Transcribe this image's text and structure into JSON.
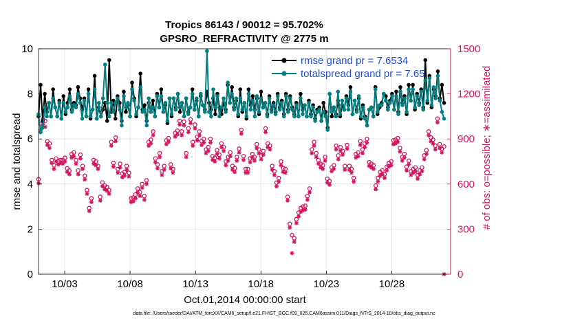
{
  "chart_data": {
    "type": "line",
    "title": "Tropics 86143 / 90012 = 95.702%",
    "subtitle": "GPSRO_REFRACTIVITY @ 2775 m",
    "xlabel": "Oct.01,2014 00:00:00 start",
    "ylabel_left": "rmse and totalspread",
    "ylabel_right": "# of obs: o=possible; ∗=assimilated",
    "footer": "data file: /Users/raeder/DAI/ATM_forcXX/CAM6_setup/f.e21.FHIST_BGC.f09_025.CAM6assim.011/Diags_NTrS_2014-10/obs_diag_output.nc",
    "x_tick_labels": [
      "10/03",
      "10/08",
      "10/13",
      "10/18",
      "10/23",
      "10/28"
    ],
    "x_tick_days": [
      3,
      8,
      13,
      18,
      23,
      28
    ],
    "xlim_days": [
      1.0,
      32.5
    ],
    "ylim_left": [
      0,
      10
    ],
    "yticks_left": [
      "0",
      "2",
      "4",
      "6",
      "8",
      "10"
    ],
    "ylim_right": [
      0,
      1500
    ],
    "yticks_right": [
      "0",
      "300",
      "600",
      "900",
      "1200",
      "1500"
    ],
    "colors": {
      "rmse": "#000000",
      "spread": "#008080",
      "obs": "#d6135f",
      "legend_text": "#1f4fe0"
    },
    "series": [
      {
        "name": "rmse grand pr = 7.6534",
        "axis": "left",
        "values": [
          7.0,
          8.4,
          6.8,
          8.0,
          7.2,
          7.6,
          7.0,
          8.2,
          7.4,
          7.0,
          7.7,
          6.9,
          7.9,
          7.1,
          7.6,
          8.2,
          7.3,
          7.6,
          7.5,
          8.3,
          7.8,
          7.3,
          7.8,
          7.0,
          8.2,
          6.9,
          7.3,
          8.8,
          6.9,
          7.4,
          7.0,
          7.3,
          7.6,
          6.8,
          9.5,
          7.2,
          7.7,
          6.9,
          7.9,
          7.6,
          6.8,
          8.1,
          7.2,
          7.5,
          7.0,
          8.5,
          7.8,
          7.0,
          7.4,
          8.9,
          7.3,
          7.5,
          6.8,
          7.6,
          7.2,
          7.7,
          7.0,
          8.0,
          7.4,
          8.2,
          7.2,
          7.5,
          6.7,
          7.8,
          7.0,
          7.8,
          7.4,
          8.0,
          7.2,
          7.6,
          7.0,
          7.8,
          7.2,
          7.4,
          8.2,
          7.3,
          7.7,
          7.0,
          7.9,
          7.5,
          7.3,
          8.1,
          7.6,
          7.3,
          7.8,
          7.1,
          8.0,
          7.4,
          7.1,
          7.6,
          7.3,
          8.4,
          7.6,
          8.3,
          7.4,
          7.7,
          7.0,
          8.2,
          7.2,
          7.6,
          6.9,
          8.2,
          7.5,
          7.9,
          7.3,
          7.8,
          7.1,
          8.1,
          7.4,
          7.6,
          7.1,
          7.9,
          7.3,
          7.6,
          7.2,
          8.0,
          7.4,
          7.7,
          7.1,
          8.0,
          7.3,
          7.9,
          7.4,
          7.1,
          7.6,
          7.0,
          8.0,
          7.3,
          7.5,
          7.0,
          7.7,
          7.1,
          7.5,
          6.9,
          7.3,
          7.4,
          6.8,
          7.6,
          7.2,
          6.5,
          8.0,
          7.0,
          7.4,
          7.1,
          7.7,
          7.0,
          7.5,
          7.3,
          7.9,
          7.5,
          8.3,
          7.1,
          7.7,
          7.3,
          7.8,
          6.9,
          7.5,
          7.0,
          6.6,
          7.3,
          7.4,
          7.0,
          8.3,
          7.1,
          7.4,
          7.6,
          8.0,
          7.9,
          7.4,
          7.7,
          8.0,
          7.3,
          8.1,
          7.2,
          8.3,
          7.6,
          7.9,
          7.1,
          8.4,
          7.7,
          8.4,
          7.3,
          8.0,
          7.6,
          8.2,
          7.4,
          9.5,
          7.6,
          8.8,
          7.4,
          8.2,
          7.9,
          9.0,
          7.8,
          8.4,
          7.6
        ]
      },
      {
        "name": "totalspread grand pr = 7.65",
        "axis": "left",
        "values": [
          7.1,
          6.3,
          6.5,
          7.4,
          7.0,
          7.6,
          7.0,
          7.8,
          7.4,
          7.0,
          7.6,
          6.9,
          7.6,
          7.2,
          7.4,
          7.9,
          7.2,
          7.5,
          7.4,
          8.0,
          7.6,
          6.9,
          7.7,
          7.0,
          8.0,
          7.0,
          7.3,
          8.2,
          6.9,
          7.6,
          7.0,
          7.8,
          9.3,
          7.6,
          7.0,
          7.6,
          7.2,
          7.6,
          7.8,
          7.3,
          6.6,
          7.9,
          7.4,
          7.6,
          7.0,
          8.2,
          7.7,
          7.1,
          7.4,
          8.3,
          7.2,
          7.3,
          6.6,
          7.8,
          7.2,
          7.4,
          7.0,
          7.9,
          7.4,
          7.9,
          7.2,
          7.6,
          6.8,
          7.8,
          7.1,
          7.8,
          7.3,
          8.0,
          7.4,
          7.6,
          7.0,
          7.8,
          7.1,
          7.4,
          8.0,
          7.3,
          7.8,
          7.0,
          8.0,
          7.5,
          7.2,
          9.9,
          7.2,
          7.0,
          8.2,
          7.4,
          7.9,
          7.0,
          7.4,
          7.8,
          7.2,
          8.5,
          7.6,
          8.0,
          7.3,
          7.8,
          7.1,
          7.8,
          7.3,
          7.6,
          7.0,
          8.0,
          7.3,
          7.7,
          7.0,
          7.9,
          7.2,
          7.8,
          7.4,
          7.6,
          7.0,
          7.8,
          7.2,
          7.5,
          7.1,
          7.9,
          7.3,
          7.6,
          7.0,
          7.9,
          7.2,
          7.8,
          7.3,
          7.0,
          7.5,
          7.0,
          7.8,
          7.1,
          7.5,
          7.0,
          7.6,
          7.0,
          7.4,
          6.8,
          7.2,
          7.3,
          6.8,
          7.2,
          7.0,
          6.4,
          8.0,
          7.2,
          7.4,
          7.0,
          8.1,
          7.1,
          7.7,
          7.3,
          7.8,
          7.3,
          8.1,
          7.1,
          7.7,
          7.2,
          7.9,
          7.0,
          7.4,
          6.9,
          6.6,
          7.3,
          7.4,
          7.0,
          8.2,
          7.2,
          7.5,
          7.5,
          8.0,
          7.7,
          7.3,
          7.6,
          7.9,
          7.3,
          7.9,
          7.1,
          8.1,
          7.5,
          7.8,
          7.2,
          8.2,
          7.7,
          8.2,
          7.4,
          7.9,
          7.5,
          8.1,
          7.3,
          8.6,
          7.7,
          8.7,
          7.5,
          8.3,
          7.8,
          8.8,
          7.7,
          7.2,
          6.9
        ]
      },
      {
        "name": "possible",
        "axis": "right",
        "values": [
          632,
          1000,
          1030,
          1020,
          885,
          870,
          760,
          725,
          770,
          750,
          760,
          760,
          775,
          705,
          690,
          800,
          810,
          760,
          690,
          795,
          720,
          655,
          560,
          440,
          505,
          760,
          750,
          720,
          515,
          610,
          590,
          580,
          560,
          880,
          740,
          910,
          700,
          735,
          670,
          680,
          720,
          675,
          505,
          510,
          530,
          570,
          545,
          600,
          520,
          625,
          880,
          895,
          950,
          770,
          730,
          805,
          685,
          720,
          890,
          905,
          730,
          700,
          940,
          955,
          1020,
          950,
          1015,
          805,
          970,
          1030,
          880,
          995,
          915,
          950,
          885,
          900,
          830,
          845,
          900,
          785,
          775,
          825,
          795,
          870,
          845,
          750,
          780,
          810,
          720,
          705,
          780,
          835,
          960,
          785,
          700,
          700,
          770,
          800,
          780,
          865,
          830,
          790,
          820,
          970,
          870,
          855,
          720,
          685,
          610,
          640,
          750,
          705,
          700,
          515,
          335,
          260,
          240,
          365,
          410,
          440,
          450,
          455,
          520,
          570,
          830,
          880,
          805,
          760,
          735,
          725,
          780,
          635,
          620,
          710,
          725,
          855,
          790,
          845,
          820,
          720,
          860,
          720,
          700,
          640,
          800,
          810,
          885,
          830,
          870,
          900,
          745,
          735,
          725,
          590,
          640,
          680,
          690,
          665,
          715,
          740,
          750,
          890,
          895,
          905,
          840,
          780,
          800,
          715,
          755,
          685,
          700,
          710,
          660,
          690,
          710,
          790,
          825,
          950,
          910,
          895,
          855,
          1035,
          865,
          835,
          850
        ]
      },
      {
        "name": "assimilated",
        "axis": "right",
        "values": [
          605,
          960,
          995,
          980,
          860,
          840,
          740,
          700,
          750,
          730,
          740,
          735,
          750,
          680,
          665,
          775,
          785,
          735,
          665,
          770,
          700,
          630,
          535,
          420,
          480,
          735,
          725,
          700,
          490,
          585,
          565,
          555,
          535,
          855,
          715,
          885,
          675,
          710,
          645,
          655,
          695,
          650,
          480,
          485,
          505,
          545,
          520,
          575,
          495,
          600,
          855,
          870,
          925,
          745,
          705,
          780,
          660,
          695,
          865,
          880,
          705,
          675,
          915,
          930,
          995,
          925,
          990,
          780,
          945,
          1005,
          855,
          970,
          890,
          925,
          860,
          875,
          805,
          820,
          875,
          760,
          750,
          800,
          770,
          845,
          820,
          725,
          755,
          785,
          695,
          680,
          755,
          810,
          935,
          760,
          675,
          675,
          745,
          775,
          755,
          840,
          805,
          765,
          795,
          945,
          845,
          830,
          695,
          660,
          585,
          615,
          725,
          680,
          675,
          490,
          310,
          140,
          215,
          340,
          385,
          415,
          425,
          430,
          495,
          545,
          805,
          855,
          780,
          735,
          710,
          700,
          755,
          610,
          595,
          685,
          700,
          830,
          765,
          820,
          795,
          695,
          835,
          695,
          675,
          615,
          775,
          785,
          860,
          805,
          845,
          875,
          720,
          710,
          700,
          565,
          615,
          655,
          665,
          640,
          690,
          715,
          725,
          865,
          870,
          880,
          815,
          755,
          775,
          690,
          730,
          660,
          675,
          685,
          635,
          665,
          685,
          765,
          800,
          925,
          885,
          870,
          830,
          1010,
          840,
          810,
          0
        ]
      }
    ]
  }
}
